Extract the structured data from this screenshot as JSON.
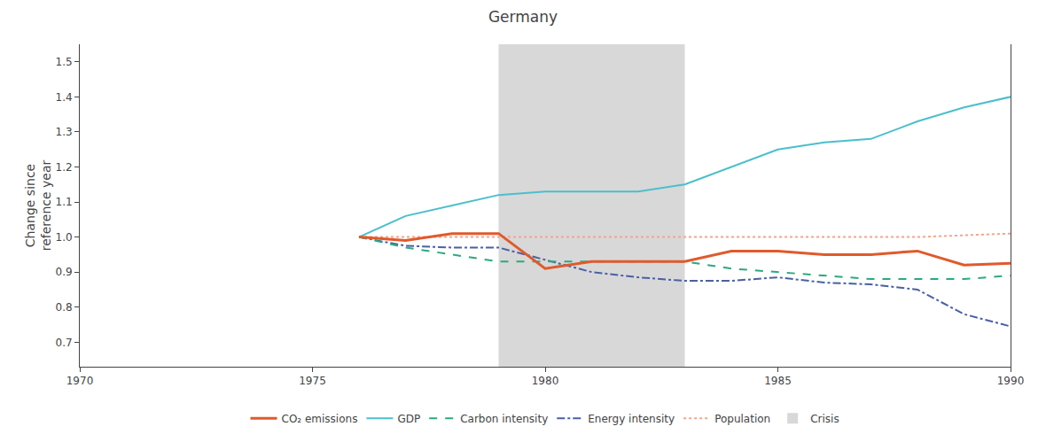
{
  "chart_data": {
    "type": "line",
    "title": "Germany",
    "ylabel": "Change since\nreference year",
    "x": [
      1970,
      1971,
      1972,
      1973,
      1974,
      1975,
      1976,
      1977,
      1978,
      1979,
      1980,
      1981,
      1982,
      1983,
      1984,
      1985,
      1986,
      1987,
      1988,
      1989,
      1990
    ],
    "series": [
      {
        "name": "CO₂ emissions",
        "color": "#e05a2b",
        "line_style": "solid",
        "values": [
          null,
          null,
          null,
          null,
          null,
          null,
          1.0,
          0.99,
          1.01,
          1.01,
          0.91,
          0.93,
          0.93,
          0.93,
          0.96,
          0.96,
          0.95,
          0.95,
          0.96,
          0.92,
          0.925
        ]
      },
      {
        "name": "GDP",
        "color": "#4bbfcc",
        "line_style": "solid",
        "values": [
          null,
          null,
          null,
          null,
          null,
          null,
          1.0,
          1.06,
          1.09,
          1.12,
          1.13,
          1.13,
          1.13,
          1.15,
          1.2,
          1.25,
          1.27,
          1.28,
          1.33,
          1.37,
          1.4
        ]
      },
      {
        "name": "Carbon intensity",
        "color": "#2aaa7e",
        "line_style": "dashed",
        "values": [
          null,
          null,
          null,
          null,
          null,
          null,
          1.0,
          0.97,
          0.95,
          0.93,
          0.93,
          0.93,
          0.93,
          0.93,
          0.91,
          0.9,
          0.89,
          0.88,
          0.88,
          0.88,
          0.89
        ]
      },
      {
        "name": "Energy intensity",
        "color": "#4a5fa5",
        "line_style": "dashdot",
        "values": [
          null,
          null,
          null,
          null,
          null,
          null,
          1.0,
          0.975,
          0.97,
          0.97,
          0.935,
          0.9,
          0.885,
          0.875,
          0.875,
          0.885,
          0.87,
          0.865,
          0.85,
          0.78,
          0.745
        ]
      },
      {
        "name": "Population",
        "color": "#f5a48b",
        "line_style": "dotted",
        "values": [
          null,
          null,
          null,
          null,
          null,
          null,
          1.0,
          1.0,
          1.0,
          1.0,
          1.0,
          1.0,
          1.0,
          1.0,
          1.0,
          1.0,
          1.0,
          1.0,
          1.0,
          1.005,
          1.01
        ]
      }
    ],
    "spans": [
      {
        "name": "Crisis",
        "x0": 1979,
        "x1": 1983,
        "color": "#d8d8d8"
      }
    ],
    "xlim": [
      1970,
      1990
    ],
    "xticks": [
      1970,
      1975,
      1980,
      1985,
      1990
    ],
    "ylim": [
      0.63,
      1.55
    ],
    "yticks": [
      0.7,
      0.8,
      0.9,
      {
        "value": 1.0,
        "label": "1.0"
      },
      1.1,
      1.2,
      1.3,
      1.4,
      1.5
    ],
    "grid": false,
    "legend": "bottom"
  }
}
